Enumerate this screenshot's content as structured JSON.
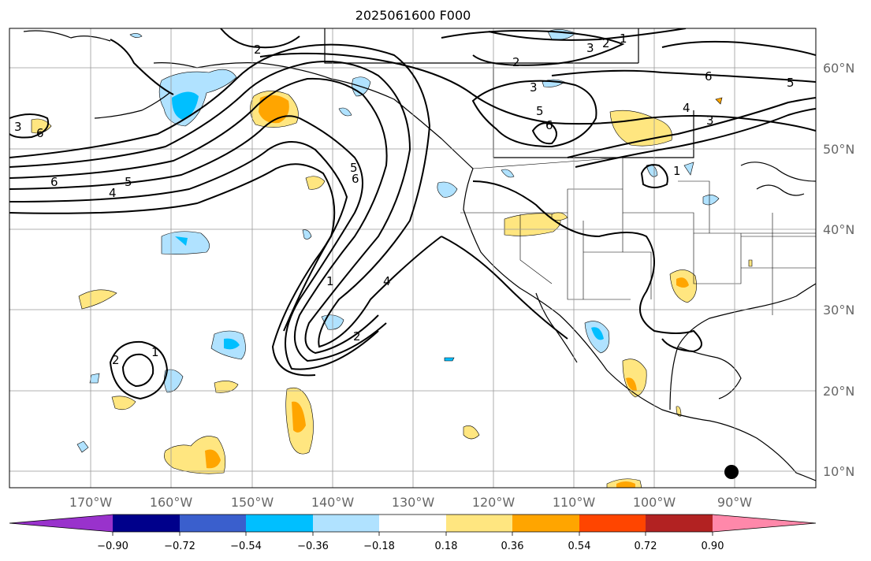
{
  "title": "2025061600 F000",
  "lon_labels": [
    "170°W",
    "160°W",
    "150°W",
    "140°W",
    "130°W",
    "120°W",
    "110°W",
    "100°W",
    "90°W"
  ],
  "lat_labels": [
    "60°N",
    "50°N",
    "40°N",
    "30°N",
    "20°N",
    "10°N"
  ],
  "colorbar": {
    "colors": [
      "#9932cc",
      "#00008b",
      "#3a5fcd",
      "#00bfff",
      "#b0e2ff",
      "#ffffff",
      "#ffe680",
      "#ffa500",
      "#ff4500",
      "#b22222",
      "#ff88aa"
    ],
    "tick_labels": [
      "−0.90",
      "−0.72",
      "−0.54",
      "−0.36",
      "−0.18",
      "0.18",
      "0.36",
      "0.54",
      "0.72",
      "0.90"
    ]
  },
  "contour_labels": [
    "2",
    "3",
    "2",
    "1",
    "3",
    "2",
    "6",
    "5",
    "3",
    "5",
    "6",
    "4",
    "3",
    "6",
    "5",
    "4",
    "6",
    "5",
    "6",
    "1",
    "4",
    "2",
    "1",
    "2",
    "1"
  ],
  "colors": {
    "warm_light": "#ffe680",
    "warm_mid": "#ffa500",
    "cool_light": "#b0e2ff",
    "cool_mid": "#00bfff",
    "grid": "#999999"
  }
}
